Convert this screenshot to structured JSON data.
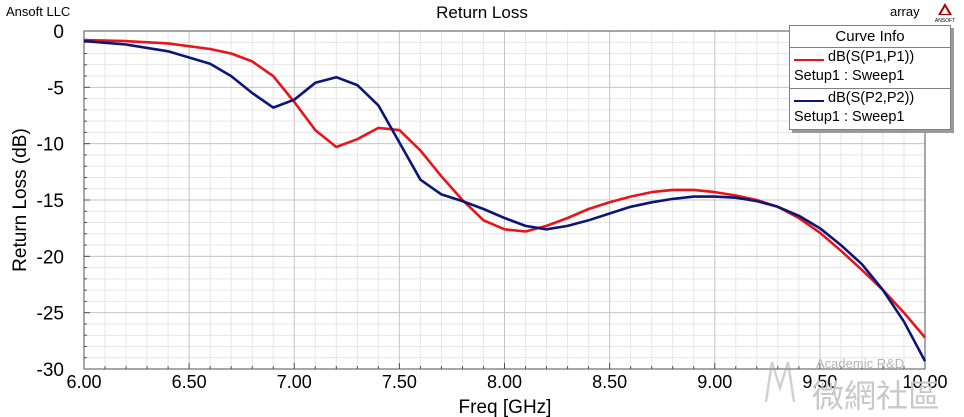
{
  "header": {
    "company": "Ansoft LLC",
    "title": "Return Loss",
    "project": "array",
    "logo_text": "ANSOFT"
  },
  "legend": {
    "title": "Curve Info",
    "entries": [
      {
        "name": "dB(S(P1,P1))",
        "sub": "Setup1 : Sweep1",
        "color": "#e8141b"
      },
      {
        "name": "dB(S(P2,P2))",
        "sub": "Setup1 : Sweep1",
        "color": "#0c1677"
      }
    ]
  },
  "watermark": {
    "text": "Academic R&D",
    "glyphs": "微網社區"
  },
  "chart_data": {
    "type": "line",
    "title": "Return Loss",
    "xlabel": "Freq [GHz]",
    "ylabel": "Return Loss (dB)",
    "xlim": [
      6.0,
      10.0
    ],
    "ylim": [
      -30,
      0
    ],
    "xticks": [
      6.0,
      6.5,
      7.0,
      7.5,
      8.0,
      8.5,
      9.0,
      9.5,
      10.0
    ],
    "xtick_labels": [
      "6.00",
      "6.50",
      "7.00",
      "7.50",
      "8.00",
      "8.50",
      "9.00",
      "9.50",
      "10.00"
    ],
    "yticks": [
      0,
      -5,
      -10,
      -15,
      -20,
      -25,
      -30
    ],
    "ytick_labels": [
      "0",
      "-5",
      "-10",
      "-15",
      "-20",
      "-25",
      "-30"
    ],
    "grid": true,
    "legend_position": "top-right",
    "series": [
      {
        "name": "dB(S(P1,P1))",
        "color": "#e8141b",
        "x": [
          6.0,
          6.2,
          6.4,
          6.6,
          6.7,
          6.8,
          6.9,
          7.0,
          7.1,
          7.2,
          7.3,
          7.4,
          7.5,
          7.6,
          7.7,
          7.8,
          7.9,
          8.0,
          8.1,
          8.2,
          8.3,
          8.4,
          8.5,
          8.6,
          8.7,
          8.8,
          8.9,
          9.0,
          9.1,
          9.2,
          9.3,
          9.4,
          9.5,
          9.6,
          9.7,
          9.8,
          9.9,
          10.0
        ],
        "y": [
          -0.8,
          -0.9,
          -1.1,
          -1.6,
          -2.0,
          -2.7,
          -4.0,
          -6.3,
          -8.8,
          -10.3,
          -9.6,
          -8.6,
          -8.8,
          -10.6,
          -12.9,
          -15.0,
          -16.8,
          -17.6,
          -17.8,
          -17.3,
          -16.6,
          -15.8,
          -15.2,
          -14.7,
          -14.3,
          -14.1,
          -14.1,
          -14.3,
          -14.6,
          -15.0,
          -15.6,
          -16.6,
          -17.9,
          -19.5,
          -21.2,
          -23.0,
          -25.0,
          -27.2
        ]
      },
      {
        "name": "dB(S(P2,P2))",
        "color": "#0c1677",
        "x": [
          6.0,
          6.2,
          6.4,
          6.6,
          6.7,
          6.8,
          6.9,
          7.0,
          7.1,
          7.2,
          7.3,
          7.4,
          7.5,
          7.6,
          7.7,
          7.8,
          7.9,
          8.0,
          8.1,
          8.2,
          8.3,
          8.4,
          8.5,
          8.6,
          8.7,
          8.8,
          8.9,
          9.0,
          9.1,
          9.2,
          9.3,
          9.4,
          9.5,
          9.6,
          9.7,
          9.8,
          9.9,
          10.0
        ],
        "y": [
          -0.9,
          -1.2,
          -1.8,
          -2.9,
          -4.0,
          -5.5,
          -6.8,
          -6.1,
          -4.6,
          -4.1,
          -4.8,
          -6.6,
          -9.9,
          -13.2,
          -14.5,
          -15.1,
          -15.8,
          -16.6,
          -17.3,
          -17.6,
          -17.3,
          -16.8,
          -16.2,
          -15.6,
          -15.2,
          -14.9,
          -14.7,
          -14.7,
          -14.8,
          -15.1,
          -15.6,
          -16.4,
          -17.5,
          -19.0,
          -20.7,
          -23.0,
          -25.8,
          -29.3
        ]
      }
    ]
  }
}
